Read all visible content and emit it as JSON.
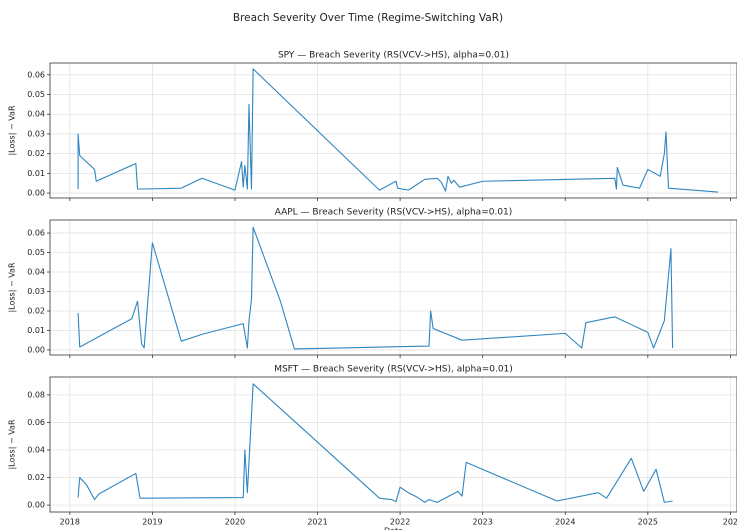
{
  "title": "Breach Severity Over Time (Regime-Switching VaR)",
  "chart_data": [
    {
      "type": "line",
      "title": "SPY — Breach Severity (RS(VCV->HS), alpha=0.01)",
      "ylabel": "|Loss| − VaR",
      "grid": true,
      "xlim": [
        2017.76,
        2026.08
      ],
      "ylim": [
        -0.0025,
        0.066
      ],
      "yticks": [
        {
          "value": 0,
          "label": "0.00"
        },
        0.01,
        0.02,
        0.03,
        0.04,
        0.05,
        0.06
      ],
      "series": [
        {
          "name": "SPY",
          "color": "#2f86c0",
          "x": [
            2018.1,
            2018.1,
            2018.12,
            2018.3,
            2018.32,
            2018.8,
            2018.82,
            2019.35,
            2019.6,
            2020.0,
            2020.08,
            2020.1,
            2020.12,
            2020.15,
            2020.17,
            2020.2,
            2020.22,
            2021.75,
            2021.95,
            2021.97,
            2022.1,
            2022.3,
            2022.45,
            2022.5,
            2022.55,
            2022.58,
            2022.62,
            2022.65,
            2022.72,
            2023.0,
            2024.6,
            2024.62,
            2024.63,
            2024.7,
            2024.9,
            2025.0,
            2025.15,
            2025.2,
            2025.22,
            2025.25,
            2025.85
          ],
          "values": [
            0.002,
            0.03,
            0.019,
            0.012,
            0.006,
            0.015,
            0.002,
            0.0025,
            0.0075,
            0.0015,
            0.016,
            0.003,
            0.014,
            0.002,
            0.045,
            0.002,
            0.063,
            0.0015,
            0.006,
            0.0025,
            0.0015,
            0.007,
            0.0075,
            0.0055,
            0.001,
            0.0085,
            0.005,
            0.0065,
            0.003,
            0.006,
            0.0075,
            0.002,
            0.013,
            0.004,
            0.0025,
            0.012,
            0.0085,
            0.02,
            0.031,
            0.0025,
            0.0005
          ]
        }
      ]
    },
    {
      "type": "line",
      "title": "AAPL — Breach Severity (RS(VCV->HS), alpha=0.01)",
      "ylabel": "|Loss| − VaR",
      "grid": true,
      "xlim": [
        2017.76,
        2026.08
      ],
      "ylim": [
        -0.0026,
        0.0667
      ],
      "yticks": [
        {
          "value": 0,
          "label": "0.00"
        },
        0.01,
        0.02,
        0.03,
        0.04,
        0.05,
        0.06
      ],
      "series": [
        {
          "name": "AAPL",
          "color": "#2f86c0",
          "x": [
            2018.1,
            2018.12,
            2018.75,
            2018.82,
            2018.87,
            2018.9,
            2019.0,
            2019.35,
            2019.6,
            2020.1,
            2020.15,
            2020.17,
            2020.2,
            2020.22,
            2020.55,
            2020.72,
            2022.35,
            2022.37,
            2022.4,
            2022.75,
            2024.0,
            2024.2,
            2024.25,
            2024.6,
            2025.0,
            2025.07,
            2025.2,
            2025.28,
            2025.3
          ],
          "values": [
            0.019,
            0.0015,
            0.016,
            0.025,
            0.003,
            0.001,
            0.055,
            0.0045,
            0.008,
            0.0135,
            0.001,
            0.015,
            0.026,
            0.063,
            0.025,
            0.0005,
            0.002,
            0.02,
            0.011,
            0.005,
            0.0085,
            0.001,
            0.014,
            0.017,
            0.009,
            0.001,
            0.015,
            0.052,
            0.001
          ]
        }
      ]
    },
    {
      "type": "line",
      "title": "MSFT — Breach Severity (RS(VCV->HS), alpha=0.01)",
      "ylabel": "|Loss| − VaR",
      "xlabel": "Date",
      "grid": true,
      "xlim": [
        2017.76,
        2026.08
      ],
      "ylim": [
        -0.005,
        0.093
      ],
      "xticks": [
        2018,
        2019,
        2020,
        2021,
        2022,
        2023,
        2024,
        2025,
        {
          "value": 2026,
          "label": "202"
        }
      ],
      "yticks": [
        {
          "value": 0,
          "label": "0.00"
        },
        0.02,
        0.04,
        0.06,
        0.08
      ],
      "series": [
        {
          "name": "MSFT",
          "color": "#2f86c0",
          "x": [
            2018.1,
            2018.12,
            2018.2,
            2018.3,
            2018.35,
            2018.8,
            2018.85,
            2020.1,
            2020.12,
            2020.15,
            2020.22,
            2021.75,
            2021.9,
            2021.95,
            2022.0,
            2022.1,
            2022.2,
            2022.3,
            2022.35,
            2022.45,
            2022.7,
            2022.75,
            2022.8,
            2023.9,
            2024.4,
            2024.5,
            2024.8,
            2024.95,
            2025.1,
            2025.2,
            2025.3
          ],
          "values": [
            0.0055,
            0.02,
            0.015,
            0.004,
            0.008,
            0.023,
            0.005,
            0.0055,
            0.04,
            0.009,
            0.088,
            0.005,
            0.004,
            0.0025,
            0.013,
            0.009,
            0.006,
            0.002,
            0.004,
            0.002,
            0.01,
            0.0065,
            0.031,
            0.003,
            0.009,
            0.005,
            0.034,
            0.01,
            0.026,
            0.002,
            0.003
          ]
        }
      ]
    }
  ]
}
